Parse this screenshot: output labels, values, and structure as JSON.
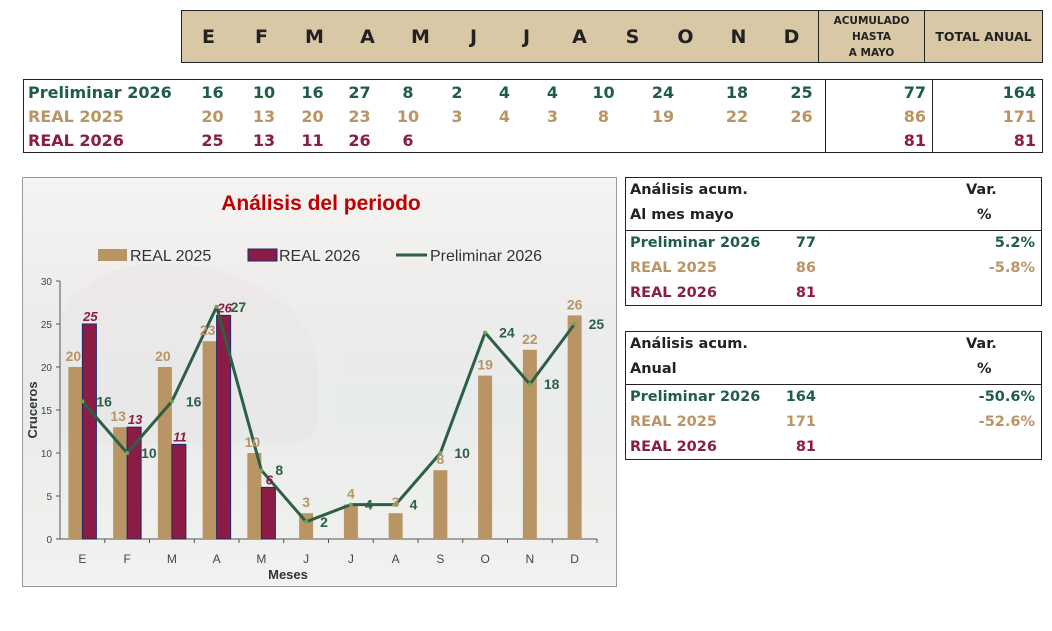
{
  "header": {
    "months": [
      "E",
      "F",
      "M",
      "A",
      "M",
      "J",
      "J",
      "A",
      "S",
      "O",
      "N",
      "D"
    ],
    "acumulado_lines": [
      "ACUMULADO",
      "HASTA",
      "A MAYO"
    ],
    "total_label": "TOTAL ANUAL"
  },
  "table": {
    "rows": [
      {
        "label": "Preliminar 2026",
        "values": [
          "16",
          "10",
          "16",
          "27",
          "8",
          "2",
          "4",
          "4",
          "10",
          "24",
          "18",
          "25"
        ],
        "acumulado": "77",
        "total": "164",
        "color": "#1f5d45"
      },
      {
        "label": "REAL 2025",
        "values": [
          "20",
          "13",
          "20",
          "23",
          "10",
          "3",
          "4",
          "3",
          "8",
          "19",
          "22",
          "26"
        ],
        "acumulado": "86",
        "total": "171",
        "color": "#b99565"
      },
      {
        "label": "REAL 2026",
        "values": [
          "25",
          "13",
          "11",
          "26",
          "6",
          "",
          "",
          "",
          "",
          "",
          "",
          ""
        ],
        "acumulado": "81",
        "total": "81",
        "color": "#8b1c45"
      }
    ]
  },
  "chart_data": {
    "type": "bar",
    "title": "Análisis del periodo",
    "xlabel": "Meses",
    "ylabel": "Cruceros",
    "categories": [
      "E",
      "F",
      "M",
      "A",
      "M",
      "J",
      "J",
      "A",
      "S",
      "O",
      "N",
      "D"
    ],
    "ylim": [
      0,
      30
    ],
    "yticks": [
      0,
      5,
      10,
      15,
      20,
      25,
      30
    ],
    "grid": false,
    "legend": "top",
    "series": [
      {
        "name": "REAL 2025",
        "type": "bar",
        "color": "#b99565",
        "values": [
          20,
          13,
          20,
          23,
          10,
          3,
          4,
          3,
          8,
          19,
          22,
          26
        ]
      },
      {
        "name": "REAL 2026",
        "type": "bar",
        "color": "#8b1c45",
        "values": [
          25,
          13,
          11,
          26,
          6,
          null,
          null,
          null,
          null,
          null,
          null,
          null
        ]
      },
      {
        "name": "Preliminar 2026",
        "type": "line",
        "color": "#2d5f46",
        "values": [
          16,
          10,
          16,
          27,
          8,
          2,
          4,
          4,
          10,
          24,
          18,
          25
        ]
      }
    ]
  },
  "analysis_month": {
    "title_line1": "Análisis acum.",
    "title_line2": "Al mes mayo",
    "var_line1": "Var.",
    "var_line2": "%",
    "rows": [
      {
        "label": "Preliminar 2026",
        "value": "77",
        "pct": "5.2%",
        "color": "#1f5d45"
      },
      {
        "label": "REAL 2025",
        "value": "86",
        "pct": "-5.8%",
        "color": "#b99565"
      },
      {
        "label": "REAL 2026",
        "value": "81",
        "pct": "",
        "color": "#8b1c45"
      }
    ]
  },
  "analysis_annual": {
    "title_line1": "Análisis acum.",
    "title_line2": "Anual",
    "var_line1": "Var.",
    "var_line2": "%",
    "rows": [
      {
        "label": "Preliminar 2026",
        "value": "164",
        "pct": "-50.6%",
        "color": "#1f5d45"
      },
      {
        "label": "REAL 2025",
        "value": "171",
        "pct": "-52.6%",
        "color": "#b99565"
      },
      {
        "label": "REAL 2026",
        "value": "81",
        "pct": "",
        "color": "#8b1c45"
      }
    ]
  },
  "colors": {
    "title": "#c00000",
    "axis": "#555555"
  }
}
